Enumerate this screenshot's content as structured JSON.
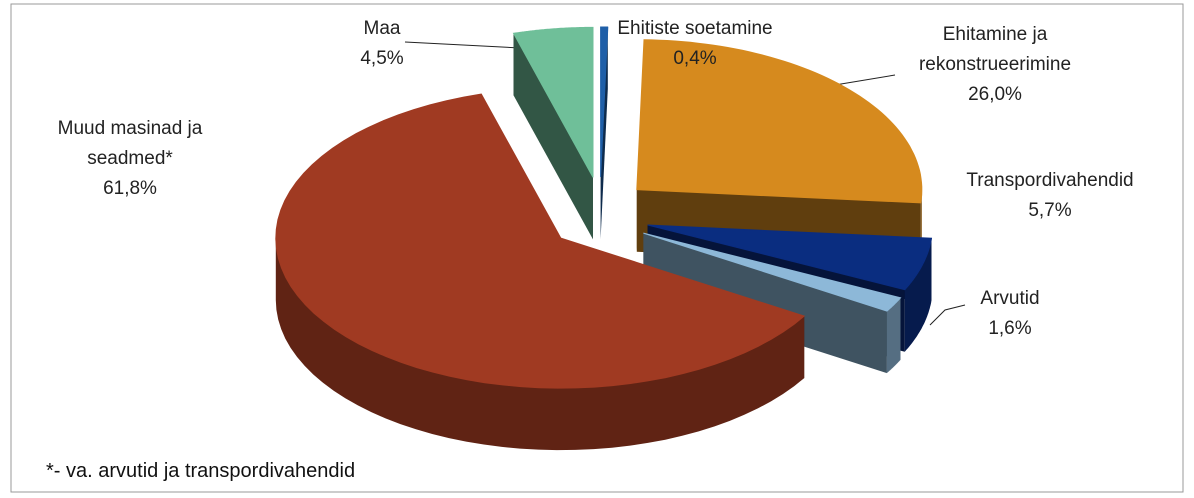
{
  "chart_data": {
    "type": "pie3d",
    "categories": [
      "Ehitiste soetamine",
      "Ehitamine ja rekonstrueerimine",
      "Transpordivahendid",
      "Arvutid",
      "Muud masinad ja seadmed*",
      "Maa"
    ],
    "values": [
      0.4,
      26.0,
      5.7,
      1.6,
      61.8,
      4.5
    ],
    "value_labels": [
      "0,4%",
      "26,0%",
      "5,7%",
      "1,6%",
      "61,8%",
      "4,5%"
    ],
    "colors": [
      "#1f5fa8",
      "#d68a1e",
      "#0a2d80",
      "#8db8d8",
      "#a03a22",
      "#6fbf99"
    ],
    "footnote": "*- va. arvutid ja transpordivahendid"
  }
}
